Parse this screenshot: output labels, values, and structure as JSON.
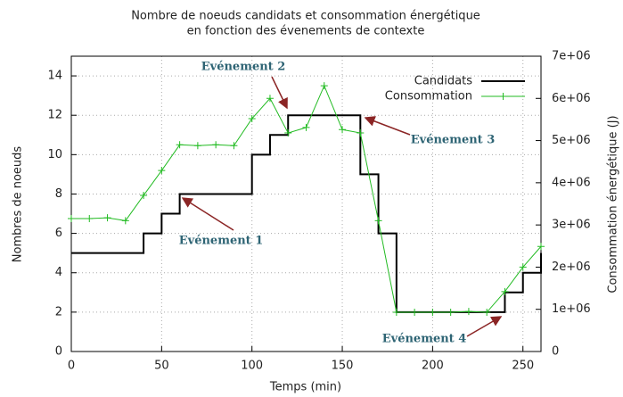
{
  "chart_data": {
    "type": "line",
    "title": [
      "Nombre de noeuds candidats et consommation énergétique",
      "en fonction des évenements de contexte"
    ],
    "xlabel": "Temps (min)",
    "ylabel": "Nombres de noeuds",
    "y2label": "Consommation énergétique (J)",
    "xlim": [
      0,
      260
    ],
    "xticks": [
      0,
      50,
      100,
      150,
      200,
      250
    ],
    "ylim": [
      0,
      15
    ],
    "yticks": [
      0,
      2,
      4,
      6,
      8,
      10,
      12,
      14
    ],
    "y2lim": [
      0,
      7000000
    ],
    "y2ticks": [
      0,
      {
        "value": 1000000,
        "label": "1e+06"
      },
      {
        "value": 2000000,
        "label": "2e+06"
      },
      {
        "value": 3000000,
        "label": "3e+06"
      },
      {
        "value": 4000000,
        "label": "4e+06"
      },
      {
        "value": 5000000,
        "label": "5e+06"
      },
      {
        "value": 6000000,
        "label": "6e+06"
      },
      {
        "value": 7000000,
        "label": "7e+06"
      }
    ],
    "grid": true,
    "legend": "top-right",
    "series": [
      {
        "name": "Candidats",
        "color": "#000000",
        "step": true,
        "x": [
          0,
          40,
          50,
          60,
          100,
          110,
          120,
          160,
          170,
          180,
          240,
          250,
          260
        ],
        "values": [
          5,
          6,
          7,
          8,
          10,
          11,
          12,
          9,
          6,
          2,
          3,
          4,
          5
        ]
      },
      {
        "name": "Consommation",
        "color": "#22bb22",
        "axis": "y2",
        "x": [
          0,
          10,
          20,
          30,
          40,
          50,
          60,
          70,
          80,
          90,
          100,
          110,
          120,
          130,
          140,
          150,
          160,
          170,
          180,
          190,
          200,
          210,
          220,
          230,
          240,
          250,
          260
        ],
        "values": [
          3150000,
          3150000,
          3170000,
          3100000,
          3700000,
          4290000,
          4900000,
          4880000,
          4900000,
          4880000,
          5520000,
          6000000,
          5180000,
          5310000,
          6300000,
          5260000,
          5180000,
          3100000,
          930000,
          930000,
          930000,
          930000,
          950000,
          930000,
          1420000,
          2000000,
          2490000
        ]
      }
    ],
    "annotations": [
      "Evénement 1",
      "Evénement 2",
      "Evénement 3",
      "Evénement 4"
    ]
  }
}
